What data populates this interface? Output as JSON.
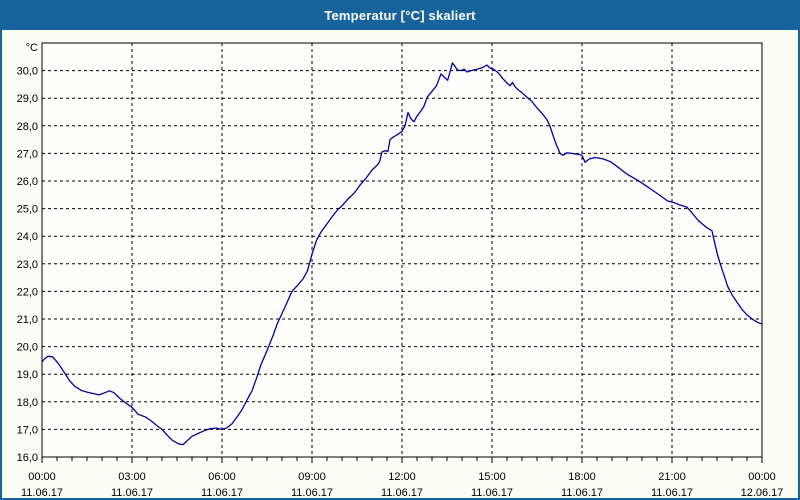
{
  "window": {
    "title": "Temperatur [°C] skaliert",
    "title_bar_color": "#17639B",
    "border_color": "#17639B",
    "background_color": "#FBFDF6",
    "plot_background_color": "#FEFEFC"
  },
  "chart_data": {
    "type": "line",
    "title": "Temperatur [°C] skaliert",
    "xlabel": "",
    "ylabel": "°C",
    "ylim": [
      16,
      31
    ],
    "xlim_hours": [
      0,
      24
    ],
    "grid": "dashed-black",
    "legend_position": "none",
    "line_color": "#0000A0",
    "axis_color": "#000000",
    "minor_tick_interval_hours": 0.5,
    "y_ticks": [
      {
        "v": 30,
        "label": "30,0"
      },
      {
        "v": 29,
        "label": "29,0"
      },
      {
        "v": 28,
        "label": "28,0"
      },
      {
        "v": 27,
        "label": "27,0"
      },
      {
        "v": 26,
        "label": "26,0"
      },
      {
        "v": 25,
        "label": "25,0"
      },
      {
        "v": 24,
        "label": "24,0"
      },
      {
        "v": 23,
        "label": "23,0"
      },
      {
        "v": 22,
        "label": "22,0"
      },
      {
        "v": 21,
        "label": "21,0"
      },
      {
        "v": 20,
        "label": "20,0"
      },
      {
        "v": 19,
        "label": "19,0"
      },
      {
        "v": 18,
        "label": "18,0"
      },
      {
        "v": 17,
        "label": "17,0"
      },
      {
        "v": 16,
        "label": "16,0"
      }
    ],
    "x_ticks": [
      {
        "h": 0,
        "time": "00:00",
        "date": "11.06.17"
      },
      {
        "h": 3,
        "time": "03:00",
        "date": "11.06.17"
      },
      {
        "h": 6,
        "time": "06:00",
        "date": "11.06.17"
      },
      {
        "h": 9,
        "time": "09:00",
        "date": "11.06.17"
      },
      {
        "h": 12,
        "time": "12:00",
        "date": "11.06.17"
      },
      {
        "h": 15,
        "time": "15:00",
        "date": "11.06.17"
      },
      {
        "h": 18,
        "time": "18:00",
        "date": "11.06.17"
      },
      {
        "h": 21,
        "time": "21:00",
        "date": "11.06.17"
      },
      {
        "h": 24,
        "time": "00:00",
        "date": "12.06.17"
      }
    ],
    "series": [
      {
        "name": "Temperatur [°C]",
        "points": [
          [
            0,
            19.45
          ],
          [
            0.08,
            19.55
          ],
          [
            0.2,
            19.65
          ],
          [
            0.35,
            19.63
          ],
          [
            0.5,
            19.45
          ],
          [
            0.63,
            19.25
          ],
          [
            0.78,
            19.0
          ],
          [
            0.93,
            18.75
          ],
          [
            1.1,
            18.55
          ],
          [
            1.3,
            18.42
          ],
          [
            1.5,
            18.35
          ],
          [
            1.7,
            18.3
          ],
          [
            1.9,
            18.25
          ],
          [
            2.1,
            18.33
          ],
          [
            2.25,
            18.4
          ],
          [
            2.4,
            18.33
          ],
          [
            2.6,
            18.12
          ],
          [
            2.8,
            17.95
          ],
          [
            3.0,
            17.8
          ],
          [
            3.2,
            17.55
          ],
          [
            3.45,
            17.45
          ],
          [
            3.65,
            17.3
          ],
          [
            3.85,
            17.12
          ],
          [
            4.0,
            17.0
          ],
          [
            4.15,
            16.82
          ],
          [
            4.35,
            16.6
          ],
          [
            4.55,
            16.48
          ],
          [
            4.7,
            16.45
          ],
          [
            4.85,
            16.6
          ],
          [
            5.0,
            16.75
          ],
          [
            5.2,
            16.85
          ],
          [
            5.4,
            16.95
          ],
          [
            5.6,
            17.02
          ],
          [
            5.8,
            17.05
          ],
          [
            6.0,
            17.0
          ],
          [
            6.15,
            17.05
          ],
          [
            6.33,
            17.2
          ],
          [
            6.5,
            17.45
          ],
          [
            6.67,
            17.72
          ],
          [
            6.85,
            18.1
          ],
          [
            7.0,
            18.4
          ],
          [
            7.15,
            18.85
          ],
          [
            7.3,
            19.35
          ],
          [
            7.5,
            19.85
          ],
          [
            7.7,
            20.4
          ],
          [
            7.85,
            20.85
          ],
          [
            8.0,
            21.2
          ],
          [
            8.17,
            21.6
          ],
          [
            8.33,
            22.0
          ],
          [
            8.5,
            22.2
          ],
          [
            8.7,
            22.45
          ],
          [
            8.85,
            22.75
          ],
          [
            9.0,
            23.35
          ],
          [
            9.15,
            23.85
          ],
          [
            9.3,
            24.15
          ],
          [
            9.5,
            24.45
          ],
          [
            9.7,
            24.75
          ],
          [
            9.85,
            24.95
          ],
          [
            10.0,
            25.1
          ],
          [
            10.2,
            25.35
          ],
          [
            10.4,
            25.55
          ],
          [
            10.6,
            25.85
          ],
          [
            10.8,
            26.1
          ],
          [
            11.0,
            26.4
          ],
          [
            11.15,
            26.55
          ],
          [
            11.25,
            26.68
          ],
          [
            11.33,
            27.05
          ],
          [
            11.45,
            27.1
          ],
          [
            11.53,
            27.06
          ],
          [
            11.6,
            27.5
          ],
          [
            11.72,
            27.6
          ],
          [
            11.85,
            27.68
          ],
          [
            12.0,
            27.8
          ],
          [
            12.1,
            28.0
          ],
          [
            12.2,
            28.48
          ],
          [
            12.3,
            28.25
          ],
          [
            12.4,
            28.15
          ],
          [
            12.5,
            28.35
          ],
          [
            12.62,
            28.52
          ],
          [
            12.72,
            28.68
          ],
          [
            12.85,
            29.05
          ],
          [
            13.0,
            29.25
          ],
          [
            13.15,
            29.45
          ],
          [
            13.3,
            29.88
          ],
          [
            13.42,
            29.75
          ],
          [
            13.52,
            29.65
          ],
          [
            13.6,
            29.95
          ],
          [
            13.68,
            30.28
          ],
          [
            13.77,
            30.15
          ],
          [
            13.85,
            30.02
          ],
          [
            13.97,
            30.0
          ],
          [
            14.07,
            30.05
          ],
          [
            14.17,
            29.95
          ],
          [
            14.3,
            30.0
          ],
          [
            14.5,
            30.05
          ],
          [
            14.67,
            30.1
          ],
          [
            14.83,
            30.2
          ],
          [
            14.95,
            30.08
          ],
          [
            15.05,
            30.05
          ],
          [
            15.15,
            29.97
          ],
          [
            15.25,
            29.87
          ],
          [
            15.35,
            29.72
          ],
          [
            15.5,
            29.55
          ],
          [
            15.6,
            29.45
          ],
          [
            15.68,
            29.57
          ],
          [
            15.78,
            29.4
          ],
          [
            15.9,
            29.28
          ],
          [
            16.0,
            29.2
          ],
          [
            16.17,
            29.03
          ],
          [
            16.33,
            28.88
          ],
          [
            16.5,
            28.65
          ],
          [
            16.67,
            28.45
          ],
          [
            16.83,
            28.22
          ],
          [
            16.93,
            28.0
          ],
          [
            17.05,
            27.6
          ],
          [
            17.15,
            27.3
          ],
          [
            17.27,
            27.0
          ],
          [
            17.37,
            26.93
          ],
          [
            17.5,
            27.02
          ],
          [
            17.65,
            27.0
          ],
          [
            17.85,
            26.97
          ],
          [
            18.0,
            26.93
          ],
          [
            18.1,
            26.68
          ],
          [
            18.25,
            26.8
          ],
          [
            18.45,
            26.85
          ],
          [
            18.7,
            26.8
          ],
          [
            18.95,
            26.7
          ],
          [
            19.2,
            26.5
          ],
          [
            19.5,
            26.25
          ],
          [
            19.85,
            26.03
          ],
          [
            20.2,
            25.78
          ],
          [
            20.5,
            25.55
          ],
          [
            20.85,
            25.28
          ],
          [
            21.05,
            25.22
          ],
          [
            21.3,
            25.12
          ],
          [
            21.5,
            25.05
          ],
          [
            21.7,
            24.8
          ],
          [
            21.85,
            24.6
          ],
          [
            22.0,
            24.45
          ],
          [
            22.15,
            24.32
          ],
          [
            22.33,
            24.2
          ],
          [
            22.5,
            23.4
          ],
          [
            22.62,
            22.95
          ],
          [
            22.73,
            22.6
          ],
          [
            22.85,
            22.2
          ],
          [
            23.0,
            21.88
          ],
          [
            23.17,
            21.6
          ],
          [
            23.33,
            21.35
          ],
          [
            23.5,
            21.15
          ],
          [
            23.7,
            20.98
          ],
          [
            23.85,
            20.88
          ],
          [
            24.0,
            20.82
          ]
        ]
      }
    ]
  }
}
